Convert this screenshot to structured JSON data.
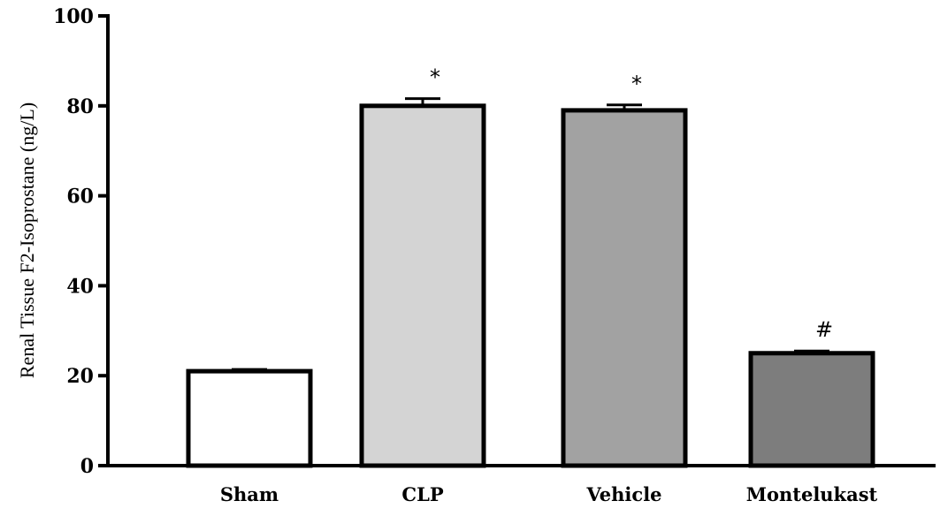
{
  "chart_data": {
    "type": "bar",
    "title": "",
    "xlabel": "",
    "ylabel": "Renal Tissue F2-Isoprostane (ng/L)",
    "ylim": [
      0,
      100
    ],
    "yticks": [
      0,
      20,
      40,
      60,
      80,
      100
    ],
    "grid": false,
    "legend": "none",
    "categories": [
      "Sham",
      "CLP",
      "Vehicle",
      "Montelukast"
    ],
    "values": [
      21,
      80,
      79,
      25
    ],
    "errors": [
      0.4,
      1.6,
      1.2,
      0.5
    ],
    "annotations": [
      "",
      "*",
      "*",
      "#"
    ],
    "colors": [
      "#ffffff",
      "#d4d4d4",
      "#a2a2a2",
      "#7d7d7d"
    ],
    "edge_color": "#000000"
  }
}
